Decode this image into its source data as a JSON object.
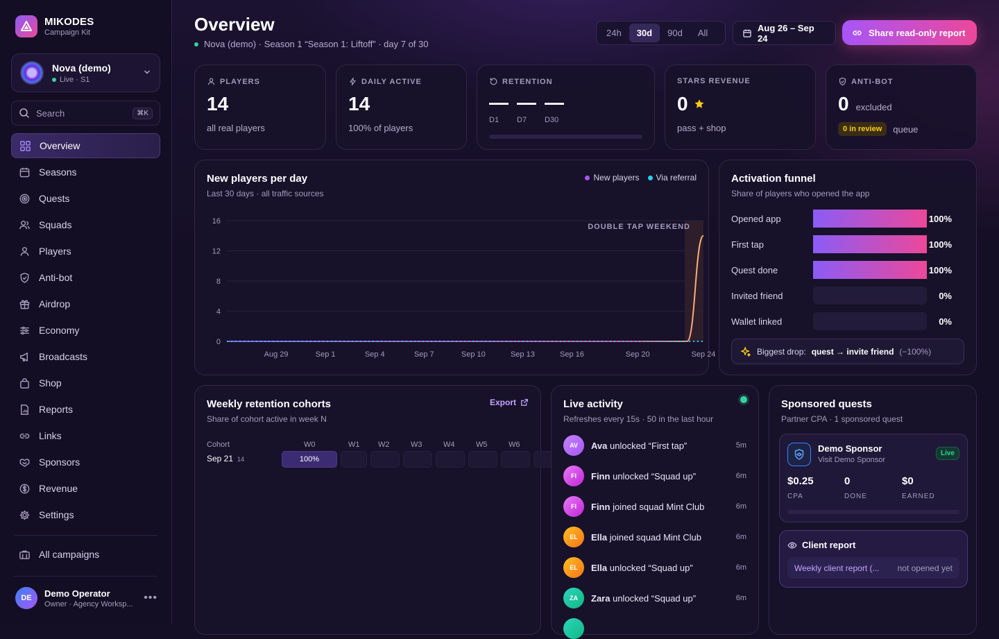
{
  "brand": {
    "name": "MIKODES",
    "sub": "Campaign Kit"
  },
  "campaign": {
    "name": "Nova (demo)",
    "status": "Live · S1"
  },
  "search": {
    "label": "Search",
    "shortcut": "⌘K"
  },
  "nav": [
    {
      "label": "Overview",
      "icon": "grid-icon",
      "active": true
    },
    {
      "label": "Seasons",
      "icon": "calendar-icon"
    },
    {
      "label": "Quests",
      "icon": "target-icon"
    },
    {
      "label": "Squads",
      "icon": "users-icon"
    },
    {
      "label": "Players",
      "icon": "user-icon"
    },
    {
      "label": "Anti-bot",
      "icon": "shield-icon"
    },
    {
      "label": "Airdrop",
      "icon": "gift-icon"
    },
    {
      "label": "Economy",
      "icon": "sliders-icon"
    },
    {
      "label": "Broadcasts",
      "icon": "megaphone-icon"
    },
    {
      "label": "Shop",
      "icon": "bag-icon"
    },
    {
      "label": "Reports",
      "icon": "report-icon"
    },
    {
      "label": "Links",
      "icon": "link-icon"
    },
    {
      "label": "Sponsors",
      "icon": "handshake-icon"
    },
    {
      "label": "Revenue",
      "icon": "dollar-icon"
    },
    {
      "label": "Settings",
      "icon": "gear-icon"
    }
  ],
  "all_campaigns": "All campaigns",
  "operator": {
    "initials": "DE",
    "name": "Demo Operator",
    "role": "Owner · Agency Worksp..."
  },
  "header": {
    "title": "Overview",
    "subtitle": "Nova (demo) · Season 1 “Season 1: Liftoff” · day 7 of 30",
    "ranges": [
      "24h",
      "30d",
      "90d",
      "All"
    ],
    "active_range": "30d",
    "date_range": "Aug 26 – Sep 24",
    "share_label": "Share read-only report"
  },
  "kpis": {
    "players": {
      "label": "PLAYERS",
      "value": "14",
      "sub": "all real players"
    },
    "daily_active": {
      "label": "DAILY ACTIVE",
      "value": "14",
      "sub": "100% of players"
    },
    "retention": {
      "label": "RETENTION",
      "d1": "—",
      "d7": "—",
      "d30": "—",
      "d1_label": "D1",
      "d7_label": "D7",
      "d30_label": "D30"
    },
    "stars_revenue": {
      "label": "STARS REVENUE",
      "value": "0",
      "sub": "pass + shop"
    },
    "anti_bot": {
      "label": "ANTI-BOT",
      "value": "0",
      "value_sub": "excluded",
      "badge": "0 in review",
      "badge_sub": "queue"
    }
  },
  "chart_panel": {
    "title": "New players per day",
    "subtitle": "Last 30 days · all traffic sources",
    "legend": [
      {
        "label": "New players",
        "color": "#a855f7"
      },
      {
        "label": "Via referral",
        "color": "#22d3ee"
      }
    ],
    "annotation": "DOUBLE TAP WEEKEND"
  },
  "chart_data": {
    "type": "line",
    "x_tick_labels": [
      "Aug 29",
      "Sep 1",
      "Sep 4",
      "Sep 7",
      "Sep 10",
      "Sep 13",
      "Sep 16",
      "Sep 20",
      "Sep 24"
    ],
    "yticks": [
      0,
      4,
      8,
      12,
      16
    ],
    "ylim": [
      0,
      16
    ],
    "x": [
      "Aug 26",
      "Aug 27",
      "Aug 28",
      "Aug 29",
      "Aug 30",
      "Aug 31",
      "Sep 1",
      "Sep 2",
      "Sep 3",
      "Sep 4",
      "Sep 5",
      "Sep 6",
      "Sep 7",
      "Sep 8",
      "Sep 9",
      "Sep 10",
      "Sep 11",
      "Sep 12",
      "Sep 13",
      "Sep 14",
      "Sep 15",
      "Sep 16",
      "Sep 17",
      "Sep 18",
      "Sep 19",
      "Sep 20",
      "Sep 21",
      "Sep 22",
      "Sep 23",
      "Sep 24"
    ],
    "series": [
      {
        "name": "New players",
        "values": [
          0,
          0,
          0,
          0,
          0,
          0,
          0,
          0,
          0,
          0,
          0,
          0,
          0,
          0,
          0,
          0,
          0,
          0,
          0,
          0,
          0,
          0,
          0,
          0,
          0,
          0,
          0,
          0,
          0,
          14
        ]
      },
      {
        "name": "Via referral",
        "values": [
          0,
          0,
          0,
          0,
          0,
          0,
          0,
          0,
          0,
          0,
          0,
          0,
          0,
          0,
          0,
          0,
          0,
          0,
          0,
          0,
          0,
          0,
          0,
          0,
          0,
          0,
          0,
          0,
          0,
          0
        ]
      }
    ],
    "grid": true
  },
  "funnel": {
    "title": "Activation funnel",
    "subtitle": "Share of players who opened the app",
    "rows": [
      {
        "label": "Opened app",
        "pct": "100%",
        "value": 1.0
      },
      {
        "label": "First tap",
        "pct": "100%",
        "value": 1.0
      },
      {
        "label": "Quest done",
        "pct": "100%",
        "value": 1.0
      },
      {
        "label": "Invited friend",
        "pct": "0%",
        "value": 0
      },
      {
        "label": "Wallet linked",
        "pct": "0%",
        "value": 0
      }
    ],
    "drop_prefix": "Biggest drop:",
    "drop_path": "quest → invite friend",
    "drop_value": "(−100%)"
  },
  "cohorts": {
    "title": "Weekly retention cohorts",
    "subtitle": "Share of cohort active in week N",
    "export": "Export",
    "cohort_header": "Cohort",
    "weeks": [
      "W0",
      "W1",
      "W2",
      "W3",
      "W4",
      "W5",
      "W6"
    ],
    "rows": [
      {
        "label": "Sep 21",
        "size": "14",
        "w0": "100%"
      }
    ]
  },
  "activity": {
    "title": "Live activity",
    "subtitle": "Refreshes every 15s · 50 in the last hour",
    "items": [
      {
        "initials": "AV",
        "name": "Ava",
        "text": "unlocked “First tap”",
        "time": "5m",
        "color": "#c084fc"
      },
      {
        "initials": "FI",
        "name": "Finn",
        "text": "unlocked “Squad up”",
        "time": "6m",
        "color": "#d946ef"
      },
      {
        "initials": "FI",
        "name": "Finn",
        "text": "joined squad Mint Club",
        "time": "6m",
        "color": "#d946ef"
      },
      {
        "initials": "EL",
        "name": "Ella",
        "text": "joined squad Mint Club",
        "time": "6m",
        "color": "#f59e0b"
      },
      {
        "initials": "EL",
        "name": "Ella",
        "text": "unlocked “Squad up”",
        "time": "6m",
        "color": "#f59e0b"
      },
      {
        "initials": "ZA",
        "name": "Zara",
        "text": "unlocked “Squad up”",
        "time": "6m",
        "color": "#14b8a6"
      }
    ]
  },
  "sponsored": {
    "title": "Sponsored quests",
    "subtitle": "Partner CPA · 1 sponsored quest",
    "sponsor_name": "Demo Sponsor",
    "sponsor_sub": "Visit Demo Sponsor",
    "status": "Live",
    "cpa": "$0.25",
    "cpa_label": "CPA",
    "done": "0",
    "done_label": "DONE",
    "earned": "$0",
    "earned_label": "EARNED",
    "progress": 0,
    "client_report_title": "Client report",
    "client_report_link": "Weekly client report (...",
    "client_report_status": "not opened yet"
  }
}
